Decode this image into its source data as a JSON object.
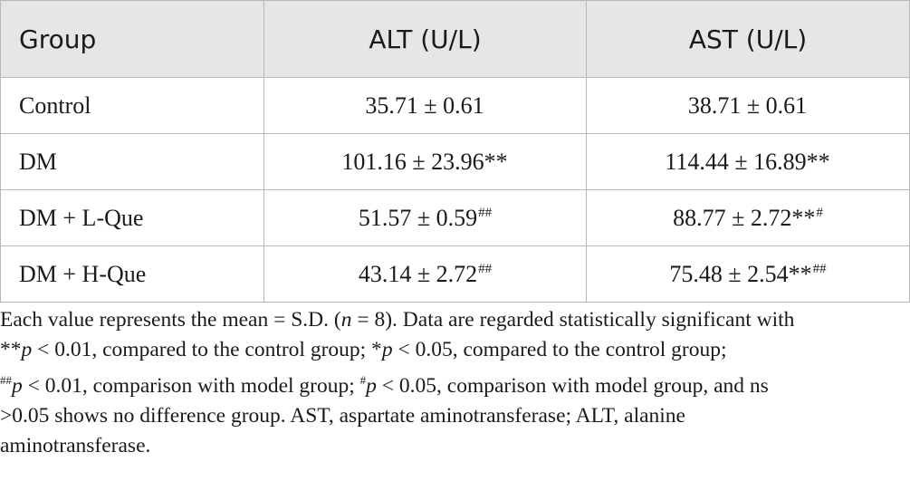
{
  "table": {
    "headers": [
      "Group",
      "ALT (U/L)",
      "AST (U/L)"
    ],
    "rows": [
      {
        "group": "Control",
        "alt": {
          "value": "35.71 ± 0.61",
          "sig": ""
        },
        "ast": {
          "value": "38.71 ± 0.61",
          "sig": ""
        }
      },
      {
        "group": "DM",
        "alt": {
          "value": "101.16 ± 23.96**",
          "sig": ""
        },
        "ast": {
          "value": "114.44 ± 16.89**",
          "sig": ""
        }
      },
      {
        "group": "DM + L-Que",
        "alt": {
          "value": "51.57 ± 0.59",
          "sig": "##"
        },
        "ast": {
          "value": "88.77 ± 2.72**",
          "sig": "#"
        }
      },
      {
        "group": "DM + H-Que",
        "alt": {
          "value": "43.14 ± 2.72",
          "sig": "##"
        },
        "ast": {
          "value": "75.48 ± 2.54**",
          "sig": "##"
        }
      }
    ]
  },
  "footnote": {
    "l1_a": "Each value represents the mean = S.D. (",
    "l1_n": "n",
    "l1_b": " = 8). Data are regarded statistically significant with",
    "l2_a": "**",
    "l2_p1": "p",
    "l2_b": " < 0.01, compared to the control group; *",
    "l2_p2": "p",
    "l2_c": " < 0.05, compared to the control group;",
    "l3_sup1": "##",
    "l3_p1": "p",
    "l3_a": " < 0.01, comparison with model group; ",
    "l3_sup2": "#",
    "l3_p2": "p",
    "l3_b": " < 0.05, comparison with model group, and ns",
    "l4": ">0.05 shows no difference group. AST, aspartate aminotransferase; ALT, alanine",
    "l5": "aminotransferase."
  }
}
